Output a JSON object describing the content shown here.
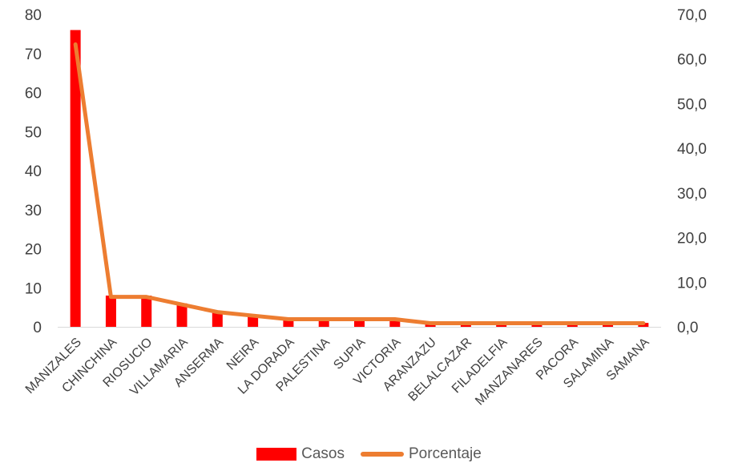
{
  "chart_data": {
    "type": "bar",
    "categories": [
      "MANIZALES",
      "CHINCHINA",
      "RIOSUCIO",
      "VILLAMARIA",
      "ANSERMA",
      "NEIRA",
      "LA DORADA",
      "PALESTINA",
      "SUPIA",
      "VICTORIA",
      "ARANZAZU",
      "BELALCAZAR",
      "FILADELFIA",
      "MANZANARES",
      "PACORA",
      "SALAMINA",
      "SAMANA"
    ],
    "series": [
      {
        "name": "Casos",
        "axis": "left",
        "type": "bar",
        "color": "#ff0000",
        "values": [
          76,
          8,
          8,
          6,
          4,
          3,
          2,
          2,
          2,
          2,
          1,
          1,
          1,
          1,
          1,
          1,
          1
        ]
      },
      {
        "name": "Porcentaje",
        "axis": "right",
        "type": "line",
        "color": "#ed7d31",
        "values": [
          63.3,
          6.7,
          6.7,
          5.0,
          3.3,
          2.5,
          1.7,
          1.7,
          1.7,
          1.7,
          0.8,
          0.8,
          0.8,
          0.8,
          0.8,
          0.8,
          0.8
        ]
      }
    ],
    "y_left": {
      "min": 0,
      "max": 80,
      "ticks": [
        "0",
        "10",
        "20",
        "30",
        "40",
        "50",
        "60",
        "70",
        "80"
      ]
    },
    "y_right": {
      "min": 0,
      "max": 70,
      "ticks": [
        "0,0",
        "10,0",
        "20,0",
        "30,0",
        "40,0",
        "50,0",
        "60,0",
        "70,0"
      ]
    },
    "grid": false,
    "legend_position": "bottom"
  }
}
